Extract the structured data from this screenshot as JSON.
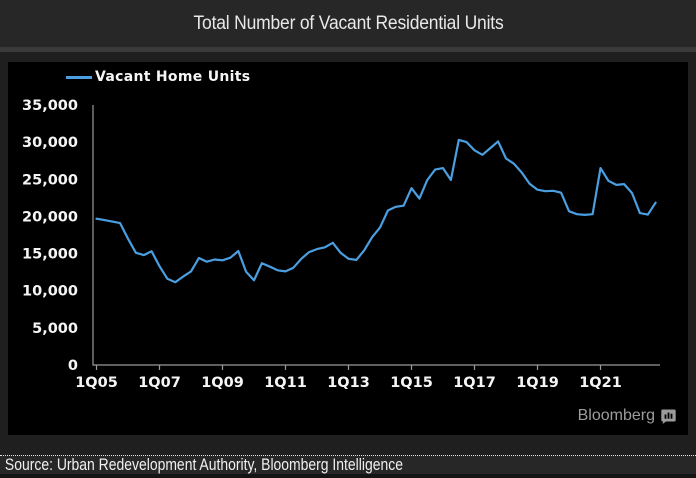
{
  "title": "Total Number of Vacant Residential Units",
  "legend": {
    "label": "Vacant Home Units"
  },
  "footer": {
    "source": "Source: Urban Redevelopment Authority, Bloomberg Intelligence"
  },
  "branding": {
    "logo_text": "Bloomberg",
    "logo_icon": "bar-chart-speech-bubble-icon"
  },
  "colors": {
    "line": "#4b9fe1",
    "axis": "#9a9a9a",
    "tick_label": "#f5f5f5",
    "panel_bg": "#000000",
    "frame_bg": "#1f1f1f",
    "title_bar_bg": "#272727",
    "logo_gray": "#9c9c9c"
  },
  "chart_data": {
    "type": "line",
    "title": "Total Number of Vacant Residential Units",
    "xlabel": "",
    "ylabel": "",
    "ylim": [
      0,
      35000
    ],
    "grid": false,
    "legend_position": "top-left",
    "y_ticks": [
      35000,
      30000,
      25000,
      20000,
      15000,
      10000,
      5000,
      0
    ],
    "x_tick_labels": [
      "1Q05",
      "1Q07",
      "1Q09",
      "1Q11",
      "1Q13",
      "1Q15",
      "1Q17",
      "1Q19",
      "1Q21"
    ],
    "x_start_period": "1Q05",
    "x_end_period": "4Q22",
    "frequency": "quarterly",
    "series": [
      {
        "name": "Vacant Home Units",
        "values": [
          19700,
          19500,
          19300,
          19100,
          17000,
          15100,
          14800,
          15300,
          13300,
          11600,
          11150,
          11900,
          12600,
          14400,
          13900,
          14200,
          14100,
          14450,
          15350,
          12550,
          11400,
          13700,
          13250,
          12750,
          12600,
          13100,
          14300,
          15200,
          15600,
          15850,
          16450,
          15100,
          14300,
          14150,
          15450,
          17200,
          18500,
          20800,
          21300,
          21450,
          23800,
          22400,
          24900,
          26300,
          26500,
          24900,
          30300,
          30000,
          28900,
          28300,
          29200,
          30100,
          27800,
          27100,
          25900,
          24400,
          23600,
          23400,
          23450,
          23200,
          20700,
          20300,
          20200,
          20300,
          26500,
          24800,
          24250,
          24350,
          23150,
          20450,
          20250,
          21850
        ]
      }
    ]
  }
}
